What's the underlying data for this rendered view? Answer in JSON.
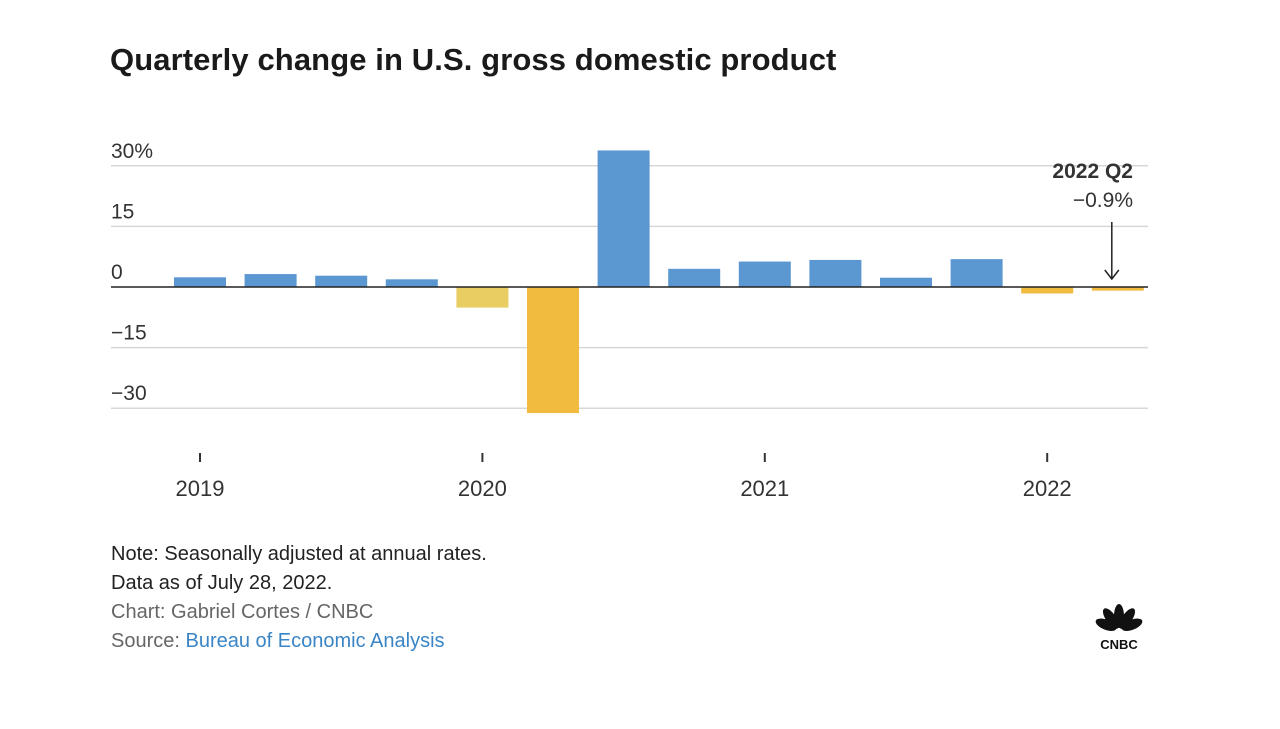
{
  "title": "Quarterly change in U.S. gross domestic product",
  "colors": {
    "blue": "#5b97d1",
    "gold": "#f0bb3f",
    "light_gold": "#e8cd62",
    "grid": "#d7d7d7",
    "axis": "#222222"
  },
  "chart_data": {
    "type": "bar",
    "categories": [
      "2019 Q1",
      "2019 Q2",
      "2019 Q3",
      "2019 Q4",
      "2020 Q1",
      "2020 Q2",
      "2020 Q3",
      "2020 Q4",
      "2021 Q1",
      "2021 Q2",
      "2021 Q3",
      "2021 Q4",
      "2022 Q1",
      "2022 Q2"
    ],
    "values": [
      2.4,
      3.2,
      2.8,
      1.9,
      -5.1,
      -31.2,
      33.8,
      4.5,
      6.3,
      6.7,
      2.3,
      6.9,
      -1.6,
      -0.9
    ],
    "bar_colors": [
      "blue",
      "blue",
      "blue",
      "blue",
      "light_gold",
      "gold",
      "blue",
      "blue",
      "blue",
      "blue",
      "blue",
      "blue",
      "gold",
      "gold"
    ],
    "ylim": [
      -30,
      30
    ],
    "yticks": [
      {
        "value": 30,
        "label": "30%"
      },
      {
        "value": 15,
        "label": "15"
      },
      {
        "value": 0,
        "label": "0"
      },
      {
        "value": -15,
        "label": "−15"
      },
      {
        "value": -30,
        "label": "−30"
      }
    ],
    "xticks": [
      {
        "index": 0,
        "label": "2019"
      },
      {
        "index": 4,
        "label": "2020"
      },
      {
        "index": 8,
        "label": "2021"
      },
      {
        "index": 12,
        "label": "2022"
      }
    ],
    "grid": true,
    "annotation": {
      "index": 13,
      "title": "2022 Q2",
      "value": "−0.9%"
    }
  },
  "footer": {
    "note_line1": "Note: Seasonally adjusted at annual rates.",
    "note_line2": "Data as of July 28, 2022.",
    "credit": "Chart: Gabriel Cortes / CNBC",
    "source_prefix": "Source: ",
    "source_link": "Bureau of Economic Analysis"
  },
  "logo": {
    "text": "CNBC",
    "icon": "peacock-icon"
  }
}
